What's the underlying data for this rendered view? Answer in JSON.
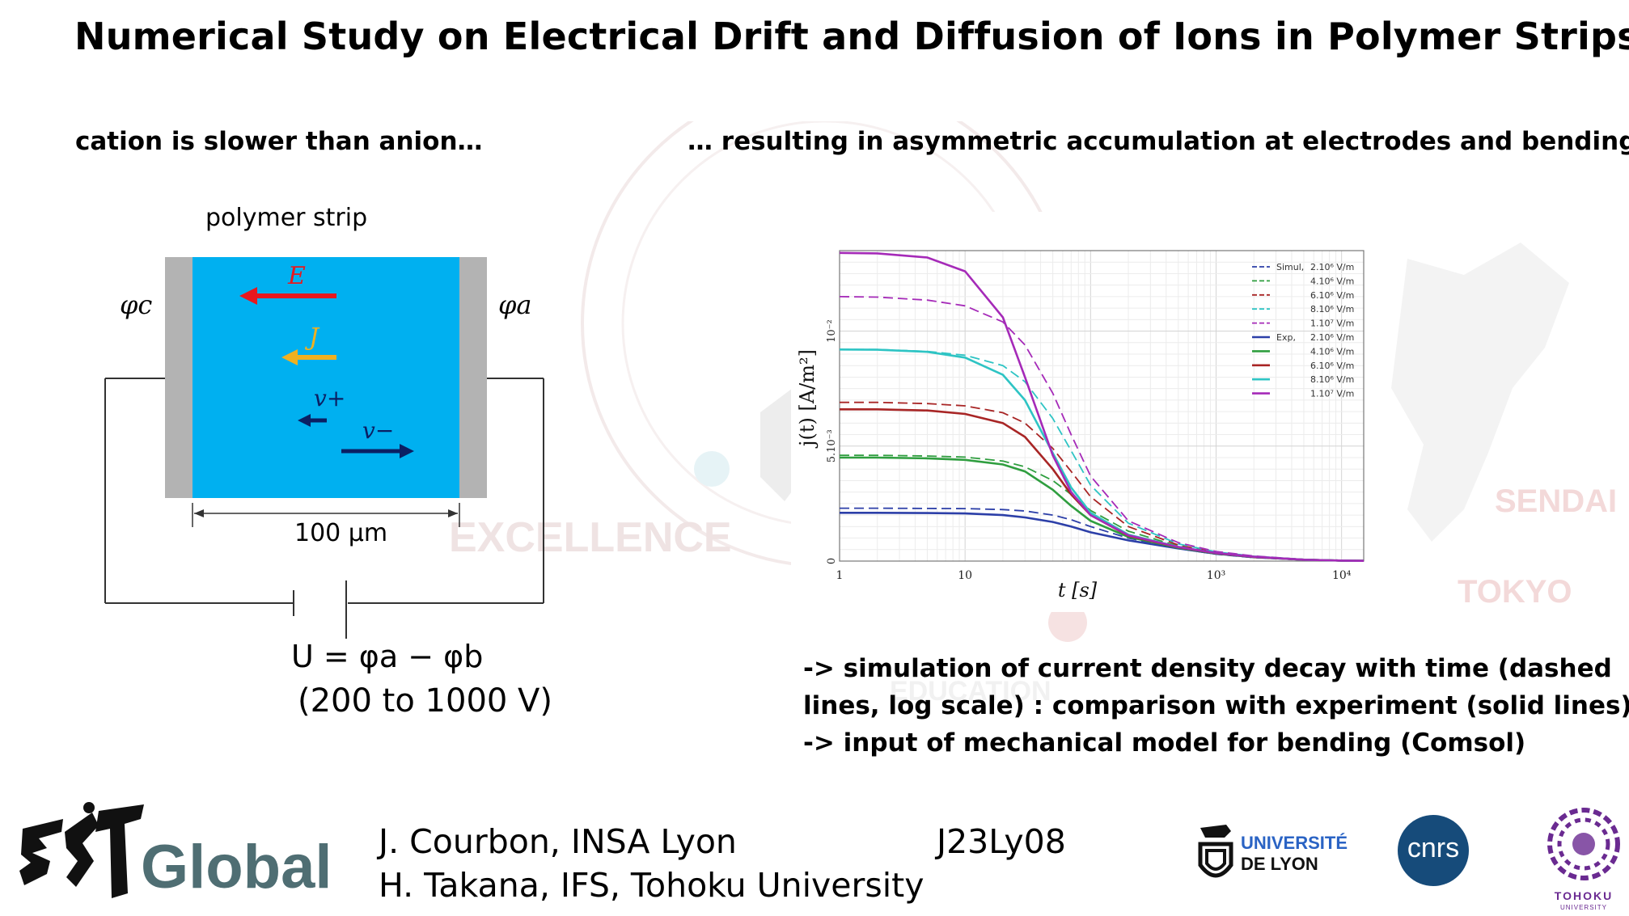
{
  "title": "Numerical Study on Electrical Drift and Diffusion of Ions in Polymer Strips",
  "left_subtitle": "cation is slower than anion…",
  "right_subtitle": "… resulting in asymmetric accumulation at electrodes and bending",
  "diagram": {
    "strip_label": "polymer strip",
    "phi_c": "φc",
    "phi_a": "φa",
    "vec_E": "E",
    "vec_J": "J",
    "vec_vplus": "v+",
    "vec_vminus": "v−",
    "width_label": "100 µm",
    "voltage_eq": "U = φa − φb",
    "voltage_range": "(200 to 1000 V)"
  },
  "background_watermarks": [
    "EXCELLENCE",
    "SENDAI",
    "TOKYO",
    "EDUCATION"
  ],
  "chart_data": {
    "type": "line",
    "xlabel": "t [s]",
    "ylabel": "j(t) [A/m²]",
    "xscale": "log",
    "xlim": [
      1,
      15000
    ],
    "ylim": [
      0,
      0.0135
    ],
    "x_ticks": [
      "1",
      "10",
      "10³",
      "10⁴"
    ],
    "y_ticks": [
      "0",
      "5.10⁻³",
      "10⁻²"
    ],
    "grid": true,
    "legend_position": "top-right",
    "legend": {
      "group_simul": "Simul,",
      "group_exp": "Exp,",
      "entries": [
        "2.10⁶ V/m",
        "4.10⁶ V/m",
        "6.10⁶ V/m",
        "8.10⁶ V/m",
        "1.10⁷ V/m"
      ]
    },
    "colors": [
      "#2c3fa8",
      "#2f9e3f",
      "#a82525",
      "#2ec4c4",
      "#a52ab8"
    ],
    "x": [
      1,
      2,
      5,
      10,
      20,
      30,
      50,
      70,
      100,
      200,
      500,
      1000,
      2000,
      5000,
      10000,
      15000
    ],
    "series": [
      {
        "kind": "simul",
        "values": [
          0.0023,
          0.0023,
          0.00229,
          0.00228,
          0.00224,
          0.00218,
          0.002,
          0.0018,
          0.0015,
          0.001,
          0.00055,
          0.0003,
          0.00015,
          5e-05,
          2e-05,
          1e-05
        ]
      },
      {
        "kind": "simul",
        "values": [
          0.0046,
          0.0046,
          0.00457,
          0.00452,
          0.00435,
          0.0041,
          0.0035,
          0.0029,
          0.0022,
          0.0013,
          0.00065,
          0.00035,
          0.00018,
          6e-05,
          2e-05,
          1e-05
        ]
      },
      {
        "kind": "simul",
        "values": [
          0.0069,
          0.0069,
          0.00685,
          0.00675,
          0.00645,
          0.006,
          0.0049,
          0.0039,
          0.0028,
          0.0015,
          0.0007,
          0.00038,
          0.0002,
          6e-05,
          2e-05,
          1e-05
        ]
      },
      {
        "kind": "simul",
        "values": [
          0.0092,
          0.0092,
          0.00912,
          0.00895,
          0.0085,
          0.0078,
          0.0062,
          0.0048,
          0.0033,
          0.00165,
          0.00075,
          0.0004,
          0.00021,
          7e-05,
          2e-05,
          1e-05
        ]
      },
      {
        "kind": "simul",
        "values": [
          0.0115,
          0.01148,
          0.01135,
          0.0111,
          0.0104,
          0.0094,
          0.0073,
          0.0055,
          0.0037,
          0.00175,
          0.0008,
          0.00042,
          0.00022,
          7e-05,
          2e-05,
          1e-05
        ]
      },
      {
        "kind": "exp",
        "values": [
          0.0021,
          0.0021,
          0.00209,
          0.00207,
          0.002,
          0.0019,
          0.0017,
          0.0015,
          0.00125,
          0.0009,
          0.00055,
          0.00032,
          0.00017,
          6e-05,
          2e-05,
          1e-05
        ]
      },
      {
        "kind": "exp",
        "values": [
          0.0045,
          0.0045,
          0.00447,
          0.0044,
          0.0042,
          0.0039,
          0.0031,
          0.0024,
          0.00175,
          0.00105,
          0.00058,
          0.00033,
          0.00018,
          6e-05,
          2e-05,
          1e-05
        ]
      },
      {
        "kind": "exp",
        "values": [
          0.0066,
          0.0066,
          0.00655,
          0.0064,
          0.006,
          0.0054,
          0.004,
          0.0029,
          0.002,
          0.0011,
          0.0006,
          0.00034,
          0.00018,
          6e-05,
          2e-05,
          1e-05
        ]
      },
      {
        "kind": "exp",
        "values": [
          0.0092,
          0.00919,
          0.0091,
          0.00885,
          0.0081,
          0.007,
          0.0047,
          0.0032,
          0.0021,
          0.00115,
          0.00062,
          0.00035,
          0.00019,
          6e-05,
          2e-05,
          1e-05
        ]
      },
      {
        "kind": "exp",
        "values": [
          0.0134,
          0.01338,
          0.0132,
          0.0126,
          0.0106,
          0.008,
          0.0046,
          0.003,
          0.002,
          0.00112,
          0.00061,
          0.00035,
          0.00019,
          6e-05,
          2e-05,
          1e-05
        ]
      }
    ]
  },
  "bullets": [
    "-> simulation of current density decay with time (dashed",
    "lines, log scale) : comparison with experiment (solid lines)",
    "-> input of mechanical model for bending (Comsol)"
  ],
  "footer": {
    "logo_text": "Global",
    "author1": "J. Courbon, INSA Lyon",
    "author2": "H. Takana, IFS, Tohoku University",
    "code": "J23Ly08",
    "udl_line1": "UNIVERSITÉ",
    "udl_line2": "DE LYON",
    "cnrs": "cnrs",
    "tohoku": "TOHOKU",
    "tohoku_sub": "UNIVERSITY"
  }
}
